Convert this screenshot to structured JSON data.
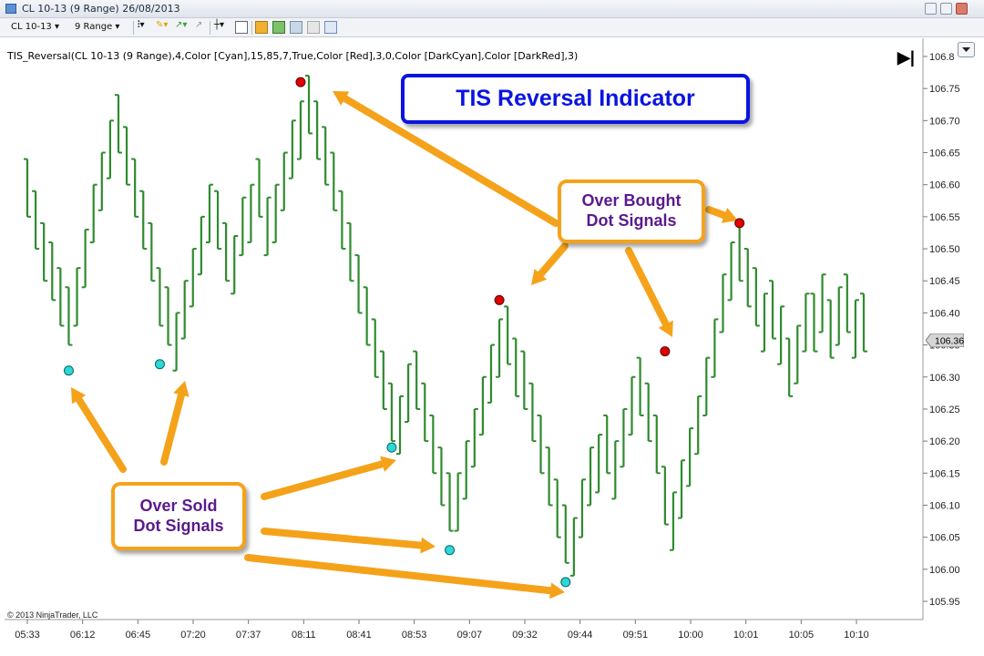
{
  "window": {
    "title": "CL 10-13 (9 Range)  26/08/2013",
    "controls": [
      "minimize-icon",
      "restore-icon",
      "close-icon"
    ]
  },
  "toolbar": {
    "instrument": "CL 10-13",
    "interval": "9 Range",
    "icons": [
      "bar-style-icon",
      "draw-icon",
      "marker-icon",
      "crosshair-icon",
      "data-box-icon",
      "chart-trader-icon",
      "indicator-icon",
      "strategy-icon",
      "properties-icon"
    ]
  },
  "chart": {
    "indicator_label": "TIS_Reversal(CL 10-13 (9 Range),4,Color [Cyan],15,85,7,True,Color [Red],3,0,Color [DarkCyan],Color [DarkRed],3)",
    "copyright": "© 2013 NinjaTrader, LLC",
    "current_price": "106.36",
    "colors": {
      "bars": "#2e8b2e",
      "overbought": "#e00000",
      "oversold": "#2fd6d6",
      "arrow": "#f5a21b",
      "title": "#0a14e0",
      "callout_text": "#5a1a8c"
    }
  },
  "annotations": {
    "title": "TIS Reversal Indicator",
    "overbought": [
      "Over Bought",
      "Dot Signals"
    ],
    "oversold": [
      "Over Sold",
      "Dot Signals"
    ]
  },
  "chart_data": {
    "type": "line",
    "title": "TIS Reversal Indicator",
    "xlabel": "",
    "ylabel": "",
    "x_tick_labels": [
      "05:33",
      "06:12",
      "06:45",
      "07:20",
      "07:37",
      "08:11",
      "08:41",
      "08:53",
      "09:07",
      "09:32",
      "09:44",
      "09:51",
      "10:00",
      "10:01",
      "10:05",
      "10:10"
    ],
    "y_tick_labels": [
      "105.95",
      "106.00",
      "106.05",
      "106.10",
      "106.15",
      "106.20",
      "106.25",
      "106.30",
      "106.35",
      "106.40",
      "106.45",
      "106.50",
      "106.55",
      "106.60",
      "106.65",
      "106.70",
      "106.75",
      "106.8"
    ],
    "ylim": [
      105.92,
      106.82
    ],
    "grid": false,
    "series": [
      {
        "close": [
          106.55,
          106.5,
          106.45,
          106.42,
          106.38,
          106.35,
          106.47,
          106.53,
          106.6,
          106.65,
          106.7,
          106.65,
          106.6,
          106.55,
          106.5,
          106.45,
          106.38,
          106.35,
          106.4,
          106.45,
          106.5,
          106.55,
          106.6,
          106.5,
          106.45,
          106.52,
          106.58,
          106.6,
          106.55,
          106.58,
          106.6,
          106.65,
          106.7,
          106.73,
          106.68,
          106.64,
          106.6,
          106.56,
          106.5,
          106.45,
          106.4,
          106.35,
          106.3,
          106.25,
          106.2,
          106.27,
          106.32,
          106.25,
          106.2,
          106.15,
          106.1,
          106.06,
          106.15,
          106.2,
          106.25,
          106.3,
          106.35,
          106.39,
          106.32,
          106.27,
          106.25,
          106.2,
          106.15,
          106.1,
          106.05,
          106.01,
          106.08,
          106.14,
          106.19,
          106.21,
          106.15,
          106.2,
          106.25,
          106.3,
          106.24,
          106.2,
          106.15,
          106.07,
          106.12,
          106.17,
          106.22,
          106.27,
          106.33,
          106.39,
          106.46,
          106.51,
          106.45,
          106.41,
          106.38,
          106.43,
          106.36,
          106.41,
          106.27,
          106.38,
          106.43,
          106.34,
          106.46,
          106.33,
          106.44,
          106.37,
          106.42,
          106.34
        ]
      }
    ],
    "overbought_dots": [
      {
        "bar": 33,
        "y": 106.76
      },
      {
        "bar": 57,
        "y": 106.42
      },
      {
        "bar": 77,
        "y": 106.34
      },
      {
        "bar": 86,
        "y": 106.54
      }
    ],
    "oversold_dots": [
      {
        "bar": 5,
        "y": 106.31
      },
      {
        "bar": 16,
        "y": 106.32
      },
      {
        "bar": 44,
        "y": 106.19
      },
      {
        "bar": 51,
        "y": 106.03
      },
      {
        "bar": 65,
        "y": 105.98
      }
    ]
  }
}
